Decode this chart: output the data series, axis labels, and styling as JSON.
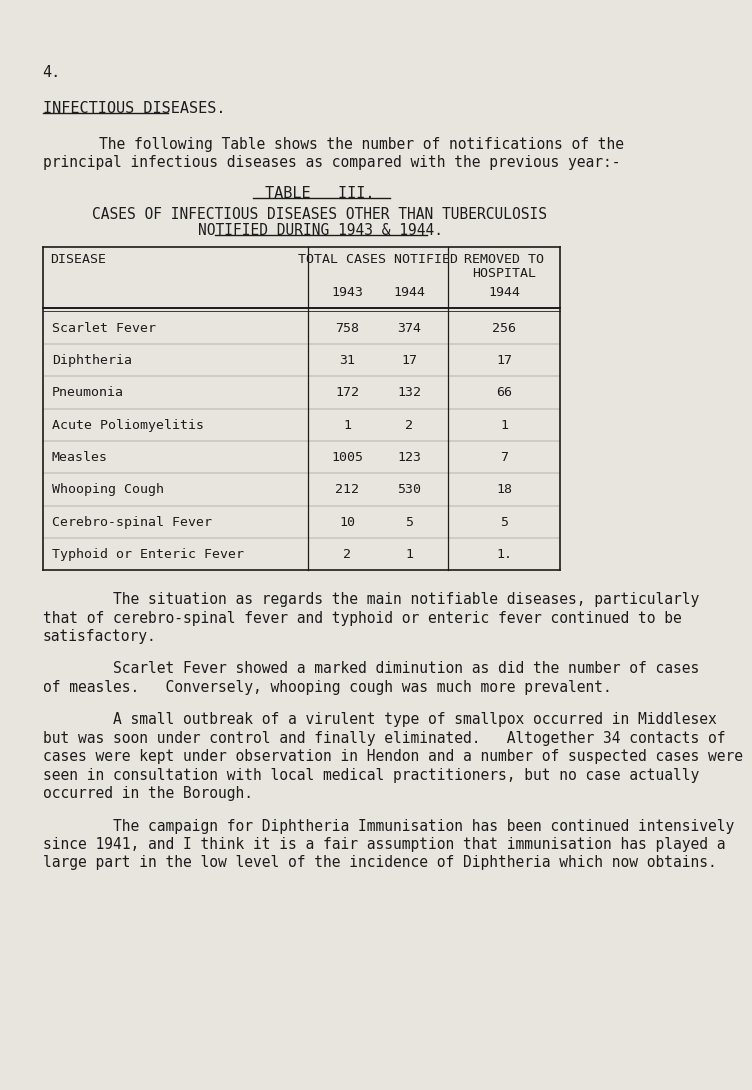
{
  "bg_color": "#e8e5de",
  "text_color": "#1c1c1c",
  "page_number": "4.",
  "section_title": "INFECTIOUS DISEASES.",
  "intro_line1": "The following Table shows the number of notifications of the",
  "intro_line2": "principal infectious diseases as compared with the previous year:-",
  "table_title_line1": "TABLE   III.",
  "table_title_line2": "CASES OF INFECTIOUS DISEASES OTHER THAN TUBERCULOSIS",
  "table_title_line3": "NOTIFIED DURING 1943 & 1944.",
  "diseases": [
    "Scarlet Fever",
    "Diphtheria",
    "Pneumonia",
    "Acute Poliomyelitis",
    "Measles",
    "Whooping Cough",
    "Cerebro-spinal Fever",
    "Typhoid or Enteric Fever"
  ],
  "cases_1943": [
    "758",
    "31",
    "172",
    "1",
    "1005",
    "212",
    "10",
    "2"
  ],
  "cases_1944": [
    "374",
    "17",
    "132",
    "2",
    "123",
    "530",
    "5",
    "1"
  ],
  "removed_1944": [
    "256",
    "17",
    "66",
    "1",
    "7",
    "18",
    "5",
    "1."
  ],
  "para1_indent": "        The situation as regards the main notifiable diseases, particularly",
  "para1_line2": "that of cerebro-spinal fever and typhoid or enteric fever continued to be",
  "para1_line3": "satisfactory.",
  "para2_indent": "        Scarlet Fever showed a marked diminution as did the number of cases",
  "para2_line2": "of measles.   Conversely, whooping cough was much more prevalent.",
  "para3_indent": "        A small outbreak of a virulent type of smallpox occurred in Middlesex",
  "para3_line2": "but was soon under control and finally eliminated.   Altogether 34 contacts of",
  "para3_line3": "cases were kept under observation in Hendon and a number of suspected cases were",
  "para3_line4": "seen in consultation with local medical practitioners, but no case actually",
  "para3_line5": "occurred in the Borough.",
  "para4_indent": "        The campaign for Diphtheria Immunisation has been continued intensively",
  "para4_line2": "since 1941, and I think it is a fair assumption that immunisation has played a",
  "para4_line3": "large part in the low level of the incidence of Diphtheria which now obtains."
}
